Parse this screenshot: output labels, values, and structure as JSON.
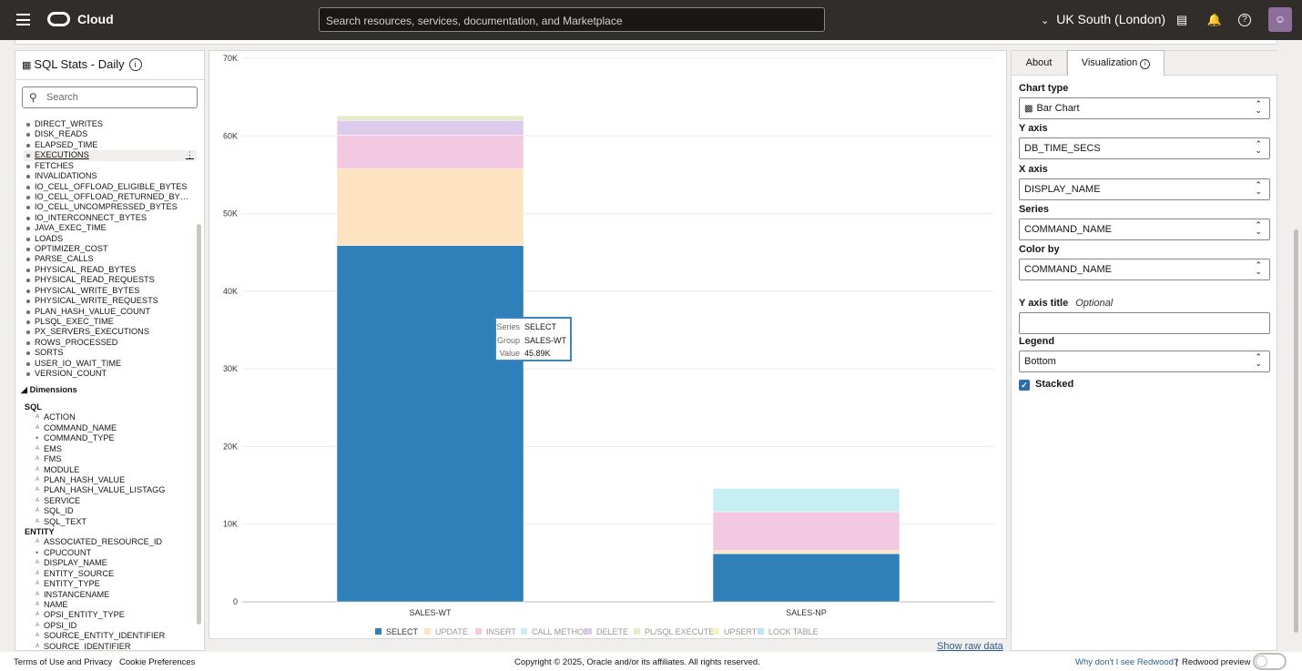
{
  "topbar": {
    "brand": "Cloud",
    "search_placeholder": "Search resources, services, documentation, and Marketplace",
    "region": "UK South (London)"
  },
  "left_panel": {
    "title": "SQL Stats - Daily",
    "search_placeholder": "Search",
    "metrics": [
      "DIRECT_WRITES",
      "DISK_READS",
      "ELAPSED_TIME",
      "EXECUTIONS",
      "FETCHES",
      "INVALIDATIONS",
      "IO_CELL_OFFLOAD_ELIGIBLE_BYTES",
      "IO_CELL_OFFLOAD_RETURNED_BY…",
      "IO_CELL_UNCOMPRESSED_BYTES",
      "IO_INTERCONNECT_BYTES",
      "JAVA_EXEC_TIME",
      "LOADS",
      "OPTIMIZER_COST",
      "PARSE_CALLS",
      "PHYSICAL_READ_BYTES",
      "PHYSICAL_READ_REQUESTS",
      "PHYSICAL_WRITE_BYTES",
      "PHYSICAL_WRITE_REQUESTS",
      "PLAN_HASH_VALUE_COUNT",
      "PLSQL_EXEC_TIME",
      "PX_SERVERS_EXECUTIONS",
      "ROWS_PROCESSED",
      "SORTS",
      "USER_IO_WAIT_TIME",
      "VERSION_COUNT"
    ],
    "selected_metric": "EXECUTIONS",
    "dimensions_heading": "Dimensions",
    "dimension_groups": [
      {
        "name": "SQL",
        "items": [
          "ACTION",
          "COMMAND_NAME",
          "COMMAND_TYPE",
          "EMS",
          "FMS",
          "MODULE",
          "PLAN_HASH_VALUE",
          "PLAN_HASH_VALUE_LISTAGG",
          "SERVICE",
          "SQL_ID",
          "SQL_TEXT"
        ]
      },
      {
        "name": "ENTITY",
        "items": [
          "ASSOCIATED_RESOURCE_ID",
          "CPUCOUNT",
          "DISPLAY_NAME",
          "ENTITY_SOURCE",
          "ENTITY_TYPE",
          "INSTANCENAME",
          "NAME",
          "OPSI_ENTITY_TYPE",
          "OPSI_ID",
          "SOURCE_ENTITY_IDENTIFIER",
          "SOURCE_IDENTIFIER"
        ]
      }
    ]
  },
  "chart_data": {
    "type": "bar",
    "stacked": true,
    "categories": [
      "SALES-WT",
      "SALES-NP"
    ],
    "series": [
      {
        "name": "SELECT",
        "color": "#2f7fb8",
        "values": [
          45890,
          6200
        ]
      },
      {
        "name": "UPDATE",
        "color": "#fde3bf",
        "values": [
          9900,
          400
        ]
      },
      {
        "name": "INSERT",
        "color": "#f3c9e1",
        "values": [
          4300,
          5000
        ]
      },
      {
        "name": "CALL METHOD",
        "color": "#c7eef2",
        "values": [
          0,
          3000
        ]
      },
      {
        "name": "DELETE",
        "color": "#ddcbeb",
        "values": [
          1900,
          0
        ]
      },
      {
        "name": "PL/SQL EXECUTE",
        "color": "#e6ecc7",
        "values": [
          600,
          0
        ]
      },
      {
        "name": "UPSERT",
        "color": "#fcf3c2",
        "values": [
          0,
          0
        ]
      },
      {
        "name": "LOCK TABLE",
        "color": "#bfe3f5",
        "values": [
          0,
          0
        ]
      }
    ],
    "yticks": [
      "0",
      "10K",
      "20K",
      "30K",
      "40K",
      "50K",
      "60K",
      "70K"
    ],
    "ylim": [
      0,
      70000
    ],
    "legend": "bottom",
    "tooltip": {
      "series_label": "Series",
      "series": "SELECT",
      "group_label": "Group",
      "group": "SALES-WT",
      "value_label": "Value",
      "value": "45.89K"
    },
    "show_raw_data": "Show raw data"
  },
  "right_panel": {
    "tabs": [
      "About",
      "Visualization"
    ],
    "fields": [
      {
        "label": "Chart type",
        "value": "Bar Chart"
      },
      {
        "label": "Y axis",
        "value": "DB_TIME_SECS"
      },
      {
        "label": "X axis",
        "value": "DISPLAY_NAME"
      },
      {
        "label": "Series",
        "value": "COMMAND_NAME"
      },
      {
        "label": "Color by",
        "value": "COMMAND_NAME"
      }
    ],
    "y_axis_title_label": "Y axis title",
    "y_axis_title_hint": "Optional",
    "y_axis_title_value": "",
    "legend_label": "Legend",
    "legend_value": "Bottom",
    "stacked_label": "Stacked"
  },
  "footer": {
    "terms": "Terms of Use and Privacy",
    "cookies": "Cookie Preferences",
    "copyright": "Copyright © 2025, Oracle and/or its affiliates. All rights reserved.",
    "why_redwood": "Why don't I see Redwood?",
    "separator": "|",
    "redwood_preview": "Redwood preview"
  }
}
